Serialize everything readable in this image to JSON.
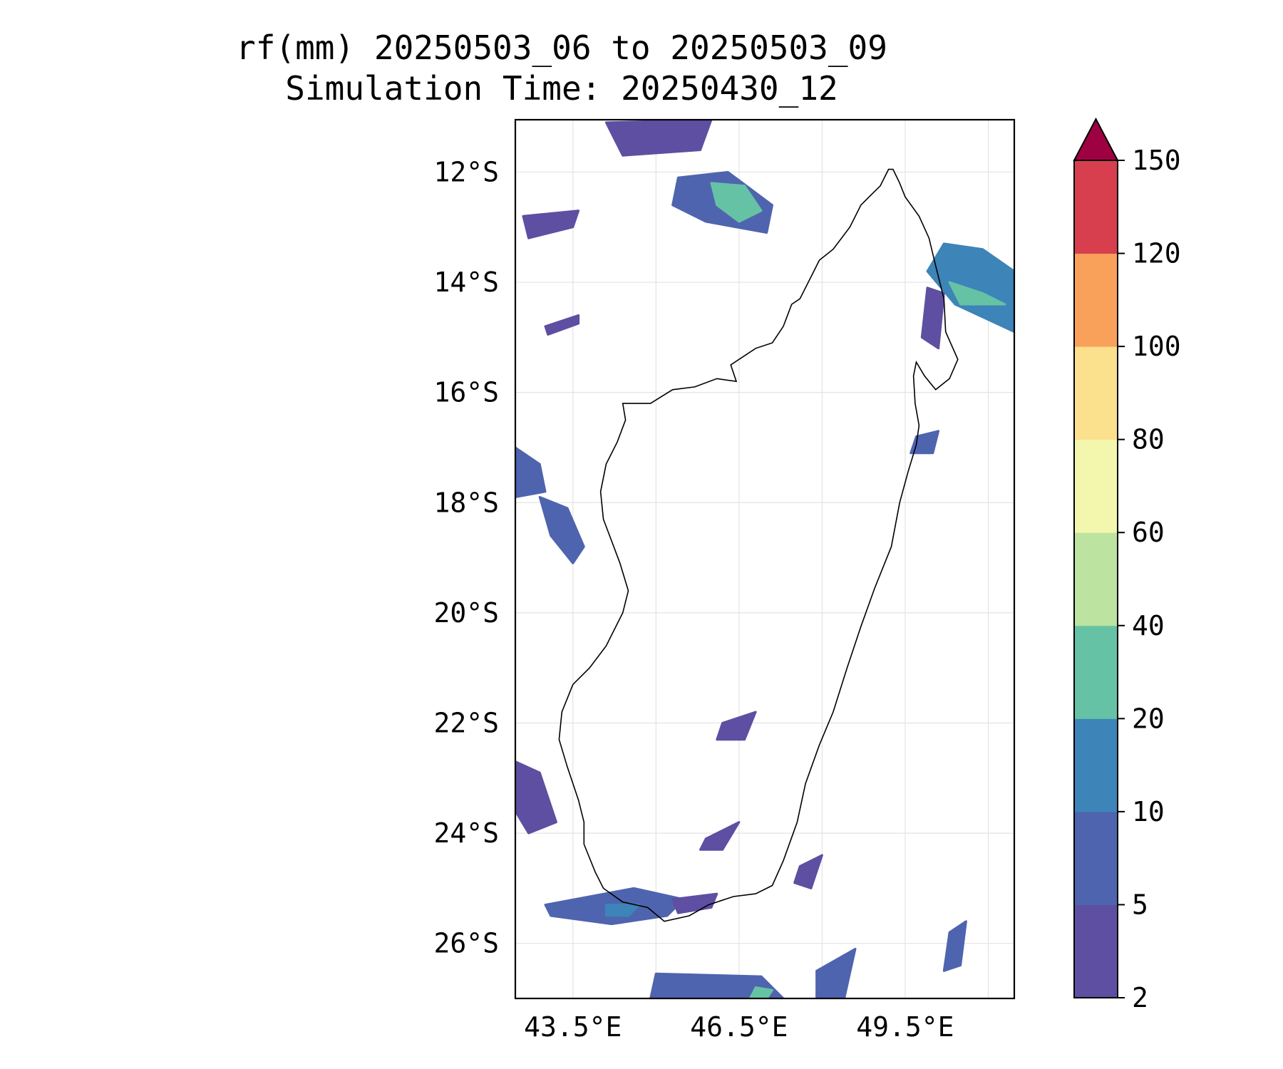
{
  "title": {
    "line1": "rf(mm) 20250503_06 to 20250503_09",
    "line2": "Simulation Time: 20250430_12"
  },
  "map": {
    "lat_ticks": [
      "12°S",
      "14°S",
      "16°S",
      "18°S",
      "20°S",
      "22°S",
      "24°S",
      "26°S"
    ],
    "lon_ticks": [
      "43.5°E",
      "46.5°E",
      "49.5°E"
    ],
    "lon_range": [
      42.46,
      51.47
    ],
    "lat_range": [
      -27.0,
      -11.05
    ],
    "grid": true,
    "coastline": "Madagascar",
    "rain_areas": [
      {
        "name": "northwest-cluster",
        "level": 5,
        "pts": [
          [
            45.4,
            -12.1
          ],
          [
            46.3,
            -12.0
          ],
          [
            47.1,
            -12.6
          ],
          [
            47.0,
            -13.1
          ],
          [
            45.9,
            -12.9
          ],
          [
            45.3,
            -12.6
          ]
        ]
      },
      {
        "name": "northwest-core",
        "level": 20,
        "pts": [
          [
            46.0,
            -12.2
          ],
          [
            46.6,
            -12.25
          ],
          [
            46.9,
            -12.7
          ],
          [
            46.5,
            -12.9
          ],
          [
            46.1,
            -12.6
          ]
        ]
      },
      {
        "name": "comoros-band",
        "level": 2,
        "pts": [
          [
            42.6,
            -12.8
          ],
          [
            43.6,
            -12.7
          ],
          [
            43.5,
            -13.0
          ],
          [
            42.7,
            -13.2
          ]
        ]
      },
      {
        "name": "north-scatter",
        "level": 2,
        "pts": [
          [
            44.1,
            -11.1
          ],
          [
            46.0,
            -11.05
          ],
          [
            45.8,
            -11.6
          ],
          [
            44.4,
            -11.7
          ]
        ]
      },
      {
        "name": "mayotte-strip",
        "level": 2,
        "pts": [
          [
            43.0,
            -14.8
          ],
          [
            43.6,
            -14.6
          ],
          [
            43.6,
            -14.75
          ],
          [
            43.05,
            -14.95
          ]
        ]
      },
      {
        "name": "northeast-belt",
        "level": 10,
        "pts": [
          [
            50.2,
            -13.3
          ],
          [
            50.9,
            -13.4
          ],
          [
            51.47,
            -13.8
          ],
          [
            51.47,
            -14.9
          ],
          [
            50.4,
            -14.4
          ],
          [
            49.9,
            -13.8
          ]
        ]
      },
      {
        "name": "northeast-core",
        "level": 20,
        "pts": [
          [
            50.3,
            -14.0
          ],
          [
            50.9,
            -14.2
          ],
          [
            51.3,
            -14.4
          ],
          [
            50.5,
            -14.4
          ]
        ]
      },
      {
        "name": "east-coast-patch",
        "level": 2,
        "pts": [
          [
            49.9,
            -14.1
          ],
          [
            50.2,
            -14.2
          ],
          [
            50.1,
            -15.2
          ],
          [
            49.8,
            -15.0
          ]
        ]
      },
      {
        "name": "sainte-marie",
        "level": 5,
        "pts": [
          [
            49.7,
            -16.8
          ],
          [
            50.1,
            -16.7
          ],
          [
            50.0,
            -17.1
          ],
          [
            49.6,
            -17.1
          ]
        ]
      },
      {
        "name": "west-mozambique",
        "level": 5,
        "pts": [
          [
            42.46,
            -17.0
          ],
          [
            42.9,
            -17.3
          ],
          [
            43.0,
            -17.8
          ],
          [
            42.46,
            -17.9
          ]
        ]
      },
      {
        "name": "west-strip",
        "level": 5,
        "pts": [
          [
            42.9,
            -17.9
          ],
          [
            43.4,
            -18.1
          ],
          [
            43.7,
            -18.8
          ],
          [
            43.5,
            -19.1
          ],
          [
            43.1,
            -18.6
          ]
        ]
      },
      {
        "name": "central-south",
        "level": 2,
        "pts": [
          [
            46.2,
            -22.0
          ],
          [
            46.8,
            -21.8
          ],
          [
            46.6,
            -22.3
          ],
          [
            46.1,
            -22.3
          ]
        ]
      },
      {
        "name": "southwest-coast",
        "level": 2,
        "pts": [
          [
            42.46,
            -22.7
          ],
          [
            42.9,
            -22.9
          ],
          [
            43.2,
            -23.8
          ],
          [
            42.7,
            -24.0
          ],
          [
            42.46,
            -23.6
          ]
        ]
      },
      {
        "name": "south-cluster",
        "level": 5,
        "pts": [
          [
            43.0,
            -25.3
          ],
          [
            44.6,
            -25.0
          ],
          [
            45.5,
            -25.2
          ],
          [
            45.2,
            -25.5
          ],
          [
            44.2,
            -25.65
          ],
          [
            43.1,
            -25.5
          ]
        ]
      },
      {
        "name": "south-core",
        "level": 10,
        "pts": [
          [
            44.1,
            -25.3
          ],
          [
            44.7,
            -25.3
          ],
          [
            44.5,
            -25.5
          ],
          [
            44.1,
            -25.5
          ]
        ]
      },
      {
        "name": "south-inland",
        "level": 2,
        "pts": [
          [
            45.3,
            -25.2
          ],
          [
            46.1,
            -25.1
          ],
          [
            46.0,
            -25.35
          ],
          [
            45.4,
            -25.45
          ]
        ]
      },
      {
        "name": "southeast-inland",
        "level": 2,
        "pts": [
          [
            45.9,
            -24.1
          ],
          [
            46.5,
            -23.8
          ],
          [
            46.2,
            -24.3
          ],
          [
            45.8,
            -24.3
          ]
        ]
      },
      {
        "name": "southeast-patch",
        "level": 2,
        "pts": [
          [
            47.6,
            -24.6
          ],
          [
            48.0,
            -24.4
          ],
          [
            47.8,
            -25.0
          ],
          [
            47.5,
            -24.9
          ]
        ]
      },
      {
        "name": "far-south",
        "level": 5,
        "pts": [
          [
            45.0,
            -26.55
          ],
          [
            46.9,
            -26.6
          ],
          [
            47.3,
            -27.0
          ],
          [
            44.9,
            -27.0
          ]
        ]
      },
      {
        "name": "far-south-core",
        "level": 20,
        "pts": [
          [
            46.8,
            -26.8
          ],
          [
            47.1,
            -26.85
          ],
          [
            47.0,
            -27.0
          ],
          [
            46.7,
            -27.0
          ]
        ]
      },
      {
        "name": "far-south-east",
        "level": 5,
        "pts": [
          [
            47.9,
            -26.5
          ],
          [
            48.6,
            -26.1
          ],
          [
            48.4,
            -27.0
          ],
          [
            47.9,
            -27.0
          ]
        ]
      },
      {
        "name": "far-southeast",
        "level": 5,
        "pts": [
          [
            50.3,
            -25.8
          ],
          [
            50.6,
            -25.6
          ],
          [
            50.5,
            -26.4
          ],
          [
            50.2,
            -26.5
          ]
        ]
      }
    ]
  },
  "colorbar": {
    "labels": [
      "2",
      "5",
      "10",
      "20",
      "40",
      "60",
      "80",
      "100",
      "120",
      "150"
    ],
    "colors": [
      "#5e4fa2",
      "#4f64ae",
      "#3d84b8",
      "#66c2a5",
      "#bde3a0",
      "#f2f7ad",
      "#fbe08e",
      "#f9a05b",
      "#d73f4f"
    ],
    "extend_color": "#9e0142"
  }
}
